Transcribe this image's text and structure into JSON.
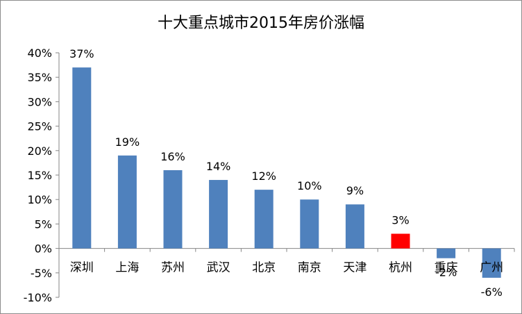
{
  "chart_data": {
    "type": "bar",
    "title": "十大重点城市2015年房价涨幅",
    "xlabel": "",
    "ylabel": "",
    "categories": [
      "深圳",
      "上海",
      "苏州",
      "武汉",
      "北京",
      "南京",
      "天津",
      "杭州",
      "重庆",
      "广州"
    ],
    "values": [
      37,
      19,
      16,
      14,
      12,
      10,
      9,
      3,
      -2,
      -6
    ],
    "data_labels": [
      "37%",
      "19%",
      "16%",
      "14%",
      "12%",
      "10%",
      "9%",
      "3%",
      "-2%",
      "-6%"
    ],
    "ylim": [
      -10,
      40
    ],
    "yticks": [
      40,
      35,
      30,
      25,
      20,
      15,
      10,
      5,
      0,
      -5,
      -10
    ],
    "ytick_labels": [
      "40%",
      "35%",
      "30%",
      "25%",
      "20%",
      "15%",
      "10%",
      "5%",
      "0%",
      "-5%",
      "-10%"
    ],
    "bar_color": "#4f81bd",
    "highlight_color": "#ff0000",
    "highlight_category": "杭州",
    "grid": false,
    "legend": "none"
  }
}
